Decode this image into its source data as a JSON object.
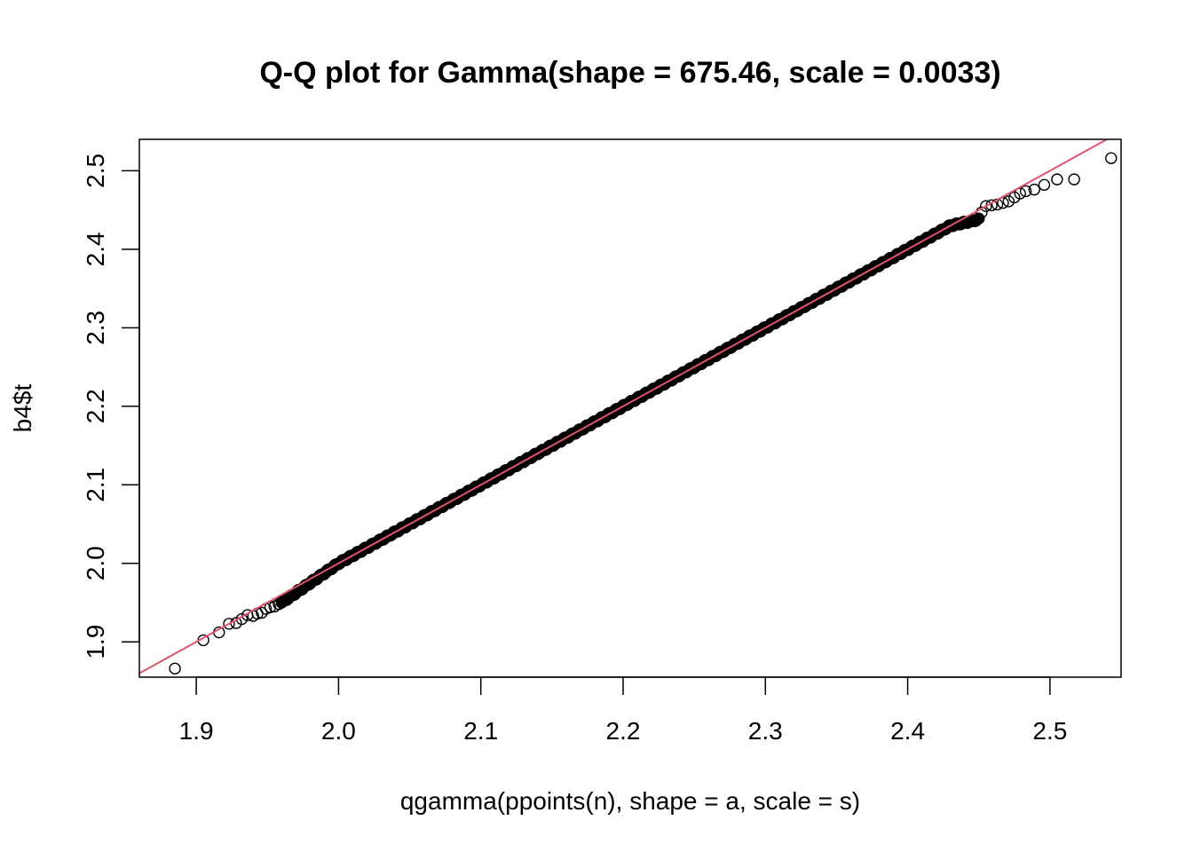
{
  "chart_data": {
    "type": "scatter",
    "title": "Q-Q plot for Gamma(shape = 675.46, scale =  0.0033)",
    "xlabel": "qgamma(ppoints(n), shape = a, scale = s)",
    "ylabel": "b4$t",
    "xlim": [
      1.86,
      2.55
    ],
    "ylim": [
      1.855,
      2.54
    ],
    "x_ticks": [
      1.9,
      2.0,
      2.1,
      2.2,
      2.3,
      2.4,
      2.5
    ],
    "x_tick_labels": [
      "1.9",
      "2.0",
      "2.1",
      "2.2",
      "2.3",
      "2.4",
      "2.5"
    ],
    "y_ticks": [
      1.9,
      2.0,
      2.1,
      2.2,
      2.3,
      2.4,
      2.5
    ],
    "y_tick_labels": [
      "1.9",
      "2.0",
      "2.1",
      "2.2",
      "2.3",
      "2.4",
      "2.5"
    ],
    "grid": false,
    "legend": "none",
    "point_color": "#000000",
    "line_color": "#DF536B",
    "outlier_points": [
      {
        "x": 1.885,
        "y": 1.866
      },
      {
        "x": 1.905,
        "y": 1.902
      },
      {
        "x": 1.916,
        "y": 1.912
      },
      {
        "x": 1.923,
        "y": 1.923
      },
      {
        "x": 1.928,
        "y": 1.924
      },
      {
        "x": 1.932,
        "y": 1.929
      },
      {
        "x": 1.936,
        "y": 1.934
      },
      {
        "x": 1.94,
        "y": 1.933
      },
      {
        "x": 1.943,
        "y": 1.936
      },
      {
        "x": 1.946,
        "y": 1.937
      },
      {
        "x": 1.949,
        "y": 1.942
      },
      {
        "x": 1.952,
        "y": 1.944
      },
      {
        "x": 1.955,
        "y": 1.945
      },
      {
        "x": 1.958,
        "y": 1.948
      },
      {
        "x": 2.452,
        "y": 2.447
      },
      {
        "x": 2.455,
        "y": 2.455
      },
      {
        "x": 2.459,
        "y": 2.456
      },
      {
        "x": 2.463,
        "y": 2.457
      },
      {
        "x": 2.467,
        "y": 2.459
      },
      {
        "x": 2.471,
        "y": 2.461
      },
      {
        "x": 2.475,
        "y": 2.466
      },
      {
        "x": 2.479,
        "y": 2.471
      },
      {
        "x": 2.483,
        "y": 2.474
      },
      {
        "x": 2.489,
        "y": 2.476
      },
      {
        "x": 2.496,
        "y": 2.482
      },
      {
        "x": 2.505,
        "y": 2.489
      },
      {
        "x": 2.517,
        "y": 2.489
      },
      {
        "x": 2.543,
        "y": 2.516
      }
    ],
    "dense_band": {
      "x_start": 1.96,
      "x_end": 2.45,
      "points": 1400,
      "anchors": [
        {
          "x": 1.96,
          "y": 1.95
        },
        {
          "x": 2.0,
          "y": 2.0
        },
        {
          "x": 2.1,
          "y": 2.1
        },
        {
          "x": 2.2,
          "y": 2.2
        },
        {
          "x": 2.3,
          "y": 2.3
        },
        {
          "x": 2.4,
          "y": 2.4
        },
        {
          "x": 2.43,
          "y": 2.43
        },
        {
          "x": 2.45,
          "y": 2.438
        }
      ]
    },
    "reference_line": {
      "slope": 1.0,
      "intercept": 0.0
    }
  }
}
